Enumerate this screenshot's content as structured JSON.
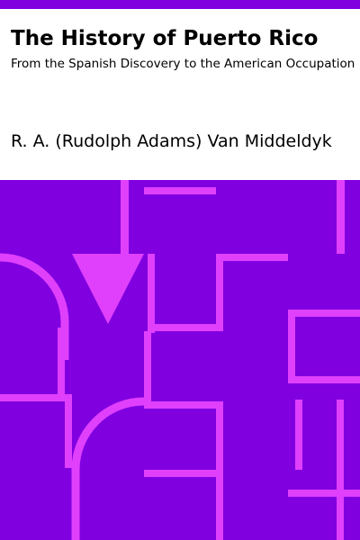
{
  "book": {
    "title": "The History of Puerto Rico",
    "subtitle": "From the Spanish Discovery to the American Occupation",
    "author": "R. A. (Rudolph Adams) Van Middeldyk"
  },
  "colors": {
    "accent": "#8000e0",
    "pattern": "#e040fb",
    "text": "#000000",
    "background": "#ffffff"
  }
}
